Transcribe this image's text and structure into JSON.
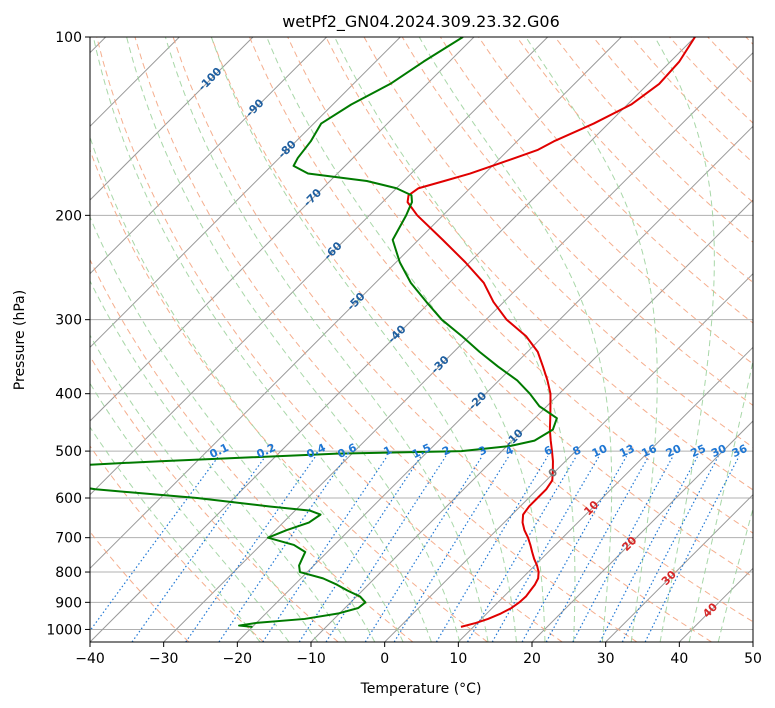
{
  "chart_data": {
    "type": "line",
    "title": "wetPf2_GN04.2024.309.23.32.G06",
    "xlabel": "Temperature (°C)",
    "ylabel": "Pressure (hPa)",
    "xlim": [
      -40,
      50
    ],
    "ylim": [
      1050,
      100
    ],
    "y_scale": "log",
    "grid": true,
    "x_ticks": [
      -40,
      -30,
      -20,
      -10,
      0,
      10,
      20,
      30,
      40,
      50
    ],
    "y_ticks": [
      100,
      200,
      300,
      400,
      500,
      600,
      700,
      800,
      900,
      1000
    ],
    "colors": {
      "temperature": "#e00000",
      "dewpoint": "#007a00",
      "isotherm": "#999999",
      "dry_adiabat": "#f4a582",
      "moist_adiabat": "#9fd39f",
      "mixing_ratio": "#1f77d4",
      "isotherm_label": "#1f5fa0",
      "adiabat_label": "#d62728"
    },
    "isotherm_labels": [
      {
        "text": "-100",
        "value": -100,
        "p": 118
      },
      {
        "text": "-90",
        "value": -90,
        "p": 132
      },
      {
        "text": "-80",
        "value": -80,
        "p": 155
      },
      {
        "text": "-70",
        "value": -70,
        "p": 187
      },
      {
        "text": "-60",
        "value": -60,
        "p": 230
      },
      {
        "text": "-50",
        "value": -50,
        "p": 280
      },
      {
        "text": "-40",
        "value": -40,
        "p": 318
      },
      {
        "text": "-30",
        "value": -30,
        "p": 358
      },
      {
        "text": "-20",
        "value": -20,
        "p": 412
      },
      {
        "text": "-10",
        "value": -10,
        "p": 476
      },
      {
        "text": "0",
        "value": 0,
        "p": 545
      }
    ],
    "adiabat_labels": [
      {
        "text": "10",
        "value": 10,
        "p": 625
      },
      {
        "text": "20",
        "value": 20,
        "p": 718
      },
      {
        "text": "30",
        "value": 30,
        "p": 820
      },
      {
        "text": "40",
        "value": 40,
        "p": 930
      }
    ],
    "mixing_ratio_labels": [
      "0.1",
      "0.2",
      "0.4",
      "0.6",
      "1",
      "1.5",
      "2",
      "3",
      "4",
      "6",
      "8",
      "10",
      "13",
      "16",
      "20",
      "25",
      "30",
      "36"
    ],
    "mixing_ratio_values": [
      0.1,
      0.2,
      0.4,
      0.6,
      1,
      1.5,
      2,
      3,
      4,
      6,
      8,
      10,
      13,
      16,
      20,
      25,
      30,
      36
    ],
    "series": [
      {
        "key": "temperature",
        "p": [
          990,
          975,
          960,
          940,
          920,
          900,
          880,
          860,
          840,
          820,
          800,
          780,
          760,
          740,
          720,
          700,
          680,
          660,
          640,
          620,
          600,
          580,
          560,
          540,
          520,
          500,
          480,
          460,
          440,
          420,
          400,
          380,
          360,
          340,
          320,
          300,
          280,
          260,
          240,
          220,
          200,
          190,
          185,
          180,
          175,
          170,
          165,
          160,
          155,
          150,
          140,
          130,
          120,
          110,
          100
        ],
        "t": [
          8.3,
          9.8,
          10.9,
          11.9,
          12.6,
          12.9,
          13.0,
          12.8,
          12.6,
          12.2,
          11.4,
          10.3,
          9.0,
          7.8,
          6.6,
          5.3,
          3.8,
          2.5,
          1.5,
          1.2,
          1.2,
          1.2,
          0.8,
          -0.4,
          -1.7,
          -3.2,
          -4.8,
          -6.4,
          -7.9,
          -9.5,
          -11.2,
          -13.4,
          -15.9,
          -18.6,
          -22.3,
          -27.2,
          -31.4,
          -35.3,
          -40.6,
          -46.7,
          -53.5,
          -56.6,
          -57.4,
          -57.0,
          -54.5,
          -52.0,
          -50.0,
          -48.0,
          -46.0,
          -45.0,
          -42.0,
          -39.5,
          -38.5,
          -38.8,
          -40.0
        ]
      },
      {
        "key": "dewpoint",
        "p": [
          990,
          985,
          975,
          960,
          940,
          920,
          900,
          880,
          860,
          840,
          820,
          800,
          780,
          760,
          740,
          720,
          700,
          680,
          660,
          640,
          630,
          620,
          600,
          580,
          560,
          540,
          520,
          505,
          500,
          490,
          480,
          460,
          440,
          420,
          400,
          380,
          360,
          340,
          320,
          300,
          280,
          260,
          240,
          220,
          200,
          195,
          190,
          185,
          180,
          175,
          170,
          165,
          160,
          150,
          140,
          130,
          120,
          110,
          100
        ],
        "t": [
          -20.0,
          -22.0,
          -20.0,
          -14.0,
          -10.2,
          -8.2,
          -8.0,
          -9.5,
          -12.0,
          -14.3,
          -17.0,
          -21.0,
          -22.0,
          -22.5,
          -23.0,
          -25.5,
          -30.0,
          -28.5,
          -26.5,
          -26.0,
          -28.0,
          -34.0,
          -45.0,
          -60.0,
          -69.0,
          -80.0,
          -55.0,
          -32.0,
          -15.5,
          -9.5,
          -7.0,
          -6.0,
          -7.0,
          -11.0,
          -14.0,
          -17.5,
          -22.0,
          -26.5,
          -31.0,
          -36.0,
          -40.5,
          -45.2,
          -49.5,
          -53.5,
          -55.0,
          -55.5,
          -56.0,
          -57.0,
          -60.0,
          -65.0,
          -74.0,
          -77.0,
          -77.5,
          -78.0,
          -79.0,
          -77.5,
          -75.0,
          -73.5,
          -71.5
        ]
      }
    ]
  }
}
